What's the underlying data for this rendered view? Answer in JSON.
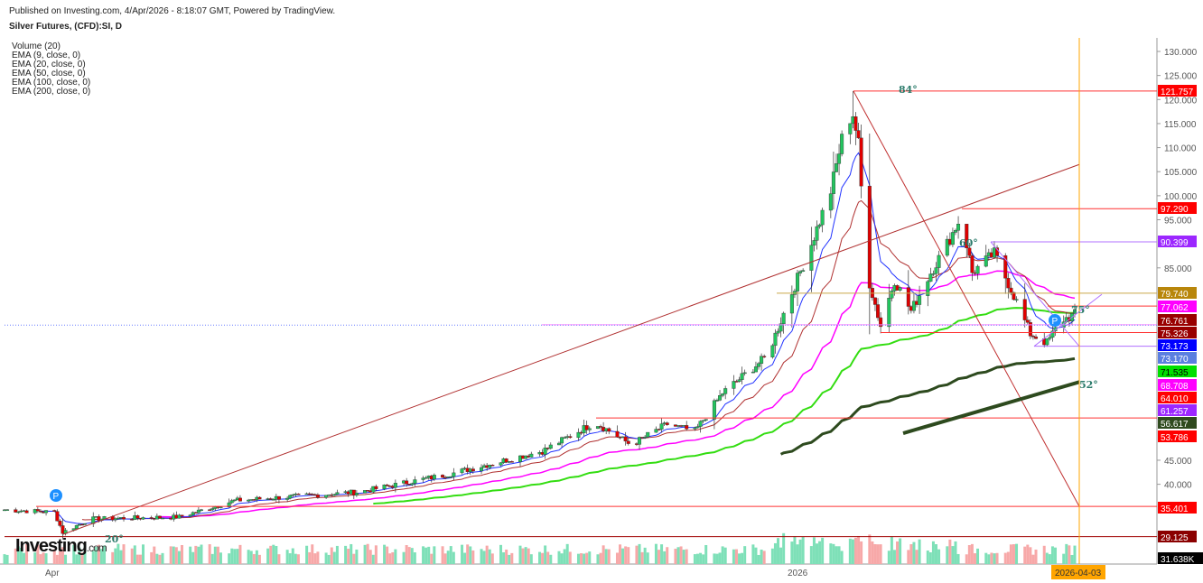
{
  "header": {
    "published": "Published on Investing.com, 4/Apr/2026 - 8:18:07 GMT, Powered by TradingView.",
    "title": "Silver Futures, (CFD):SI, D"
  },
  "legend": [
    "Volume (20)",
    "EMA (9, close, 0)",
    "EMA (20, close, 0)",
    "EMA (50, close, 0)",
    "EMA (100, close, 0)",
    "EMA (200, close, 0)"
  ],
  "logo": {
    "main": "Investing",
    "suffix": ".com"
  },
  "chart_data": {
    "type": "candlestick",
    "title": "Silver Futures, (CFD):SI, D",
    "ylim": [
      27,
      132
    ],
    "y_ticks": [
      "130.000",
      "125.000",
      "120.000",
      "115.000",
      "110.000",
      "105.000",
      "100.000",
      "95.000",
      "85.000",
      "45.000",
      "40.000"
    ],
    "x_ticks": [
      "Apr",
      "2026"
    ],
    "x_current_label": "2026-04-03",
    "approx_close": [
      [
        "2025-03-13",
        34.7
      ],
      [
        "2025-03-31",
        34.2
      ],
      [
        "2025-04-03",
        30.0
      ],
      [
        "2025-04-13",
        32.8
      ],
      [
        "2025-05-15",
        33.2
      ],
      [
        "2025-06-04",
        36.6
      ],
      [
        "2025-07-19",
        38.4
      ],
      [
        "2025-08-21",
        42.2
      ],
      [
        "2025-09-23",
        46.9
      ],
      [
        "2025-10-12",
        52.9
      ],
      [
        "2025-10-25",
        48.2
      ],
      [
        "2025-11-07",
        52.5
      ],
      [
        "2025-11-17",
        51.0
      ],
      [
        "2025-11-27",
        59.0
      ],
      [
        "2025-12-13",
        66.6
      ],
      [
        "2025-12-20",
        77.0
      ],
      [
        "2025-12-29",
        90.0
      ],
      [
        "2026-01-05",
        101.0
      ],
      [
        "2026-01-10",
        114.4
      ],
      [
        "2026-01-13",
        117.0
      ],
      [
        "2026-01-15",
        110.7
      ],
      [
        "2026-01-18",
        84.0
      ],
      [
        "2026-01-23",
        73.0
      ],
      [
        "2026-01-28",
        82.5
      ],
      [
        "2026-02-03",
        76.0
      ],
      [
        "2026-02-10",
        84.0
      ],
      [
        "2026-02-16",
        90.0
      ],
      [
        "2026-02-21",
        95.7
      ],
      [
        "2026-02-25",
        84.0
      ],
      [
        "2026-03-05",
        88.0
      ],
      [
        "2026-03-11",
        80.6
      ],
      [
        "2026-03-18",
        71.3
      ],
      [
        "2026-03-24",
        69.4
      ],
      [
        "2026-03-29",
        74.0
      ],
      [
        "2026-04-03",
        75.3
      ]
    ],
    "price_labels": [
      {
        "value": "121.757",
        "color": "#ff0000"
      },
      {
        "value": "97.290",
        "color": "#ff0000"
      },
      {
        "value": "90.399",
        "color": "#9c27ff"
      },
      {
        "value": "79.740",
        "color": "#b8860b"
      },
      {
        "value": "77.062",
        "color": "#ff00ff"
      },
      {
        "value": "76.761",
        "color": "#990000"
      },
      {
        "value": "75.326",
        "color": "#990000"
      },
      {
        "value": "73.173",
        "color": "#0000ff"
      },
      {
        "value": "73.170",
        "color": "#5b7fe0"
      },
      {
        "value": "71.535",
        "color": "#00e000",
        "text": "#000"
      },
      {
        "value": "68.708",
        "color": "#ff00ff"
      },
      {
        "value": "64.010",
        "color": "#ff0000"
      },
      {
        "value": "61.257",
        "color": "#9c27ff"
      },
      {
        "value": "56.617",
        "color": "#2f4a1e"
      },
      {
        "value": "53.786",
        "color": "#ff0000"
      },
      {
        "value": "35.401",
        "color": "#ff0000"
      },
      {
        "value": "29.125",
        "color": "#8b0000"
      }
    ],
    "volume_label": "31.638K",
    "angle_labels": [
      "84°",
      "60°",
      "75°",
      "52°",
      "20°"
    ],
    "series_colors": {
      "up": "#22c55e",
      "down": "#e00000",
      "ema9": "#2233ff",
      "ema20": "#b03030",
      "ema50": "#ff00ff",
      "ema100": "#33dd11",
      "ema200": "#2d4a1e",
      "vol_up": "#7ee0b8",
      "vol_down": "#f7a8a8"
    }
  }
}
